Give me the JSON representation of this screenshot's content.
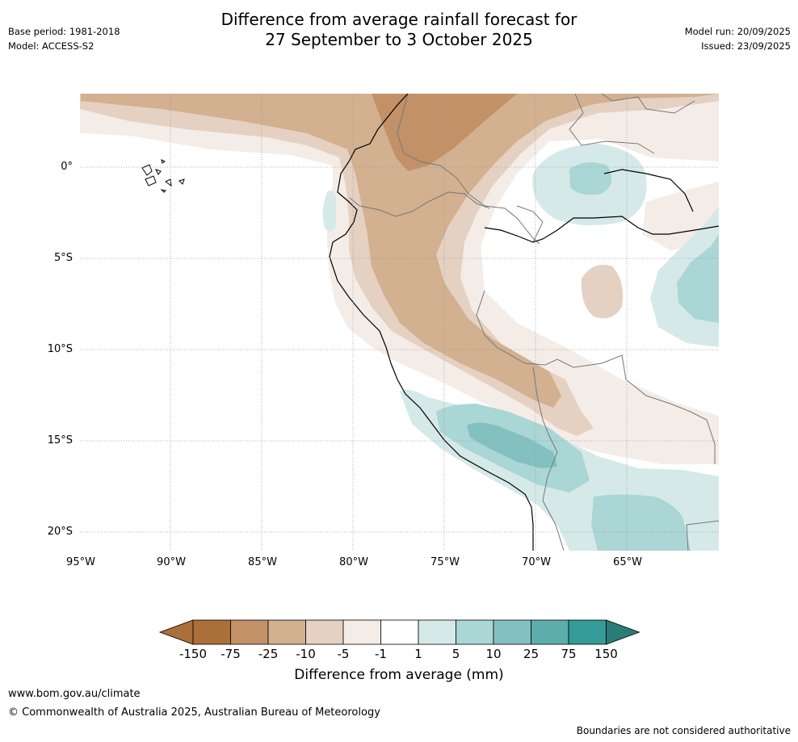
{
  "title_line1": "Difference from average rainfall forecast for",
  "title_line2": "27 September to 3 October 2025",
  "base_period": "Base period: 1981-2018",
  "model": "Model: ACCESS-S2",
  "model_run": "Model run: 20/09/2025",
  "issued": "Issued: 23/09/2025",
  "lat_labels": [
    "0°",
    "5°S",
    "10°S",
    "15°S",
    "20°S"
  ],
  "lon_labels": [
    "95°W",
    "90°W",
    "85°W",
    "80°W",
    "75°W",
    "70°W",
    "65°W"
  ],
  "colorbar": {
    "ticks": [
      "-150",
      "-75",
      "-25",
      "-10",
      "-5",
      "-1",
      "1",
      "5",
      "10",
      "25",
      "75",
      "150"
    ],
    "colors": [
      "#ab7039",
      "#c29167",
      "#d2b090",
      "#e5d1c1",
      "#f4ece7",
      "#ffffff",
      "#d5e9e8",
      "#aad6d5",
      "#83c1c0",
      "#5dadab",
      "#349b98",
      "#2a7c79"
    ],
    "label": "Difference from average (mm)"
  },
  "footer_url": "www.bom.gov.au/climate",
  "copyright": "© Commonwealth of Australia 2025, Australian Bureau of Meteorology",
  "disclaimer": "Boundaries are not considered authoritative"
}
